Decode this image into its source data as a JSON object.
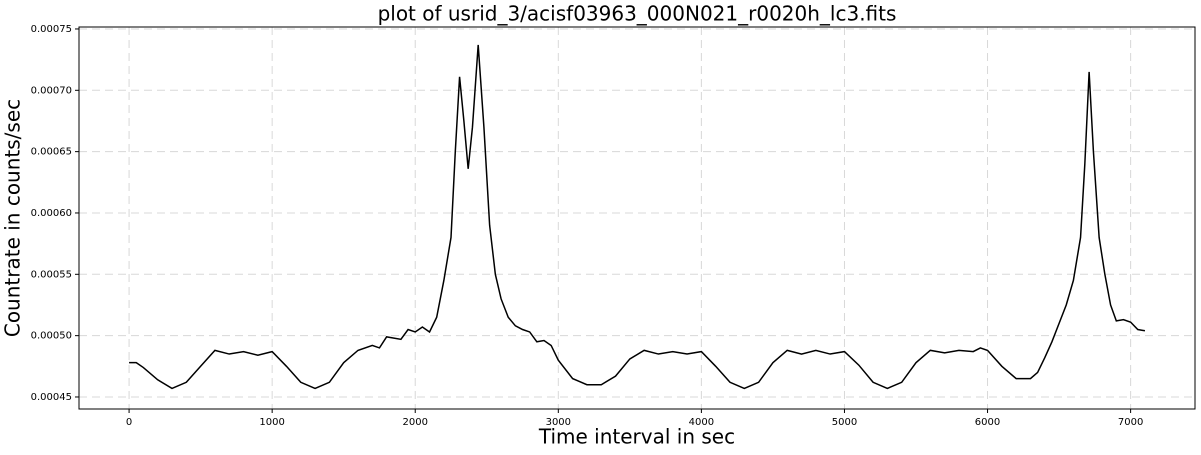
{
  "chart_data": {
    "type": "line",
    "title": "plot of usrid_3/acisf03963_000N021_r0020h_lc3.fits",
    "xlabel": "Time interval in sec",
    "ylabel": "Countrate in counts/sec",
    "x": [
      0,
      50,
      100,
      200,
      300,
      400,
      500,
      600,
      700,
      800,
      900,
      1000,
      1100,
      1200,
      1300,
      1400,
      1500,
      1600,
      1700,
      1750,
      1800,
      1900,
      1950,
      2000,
      2050,
      2100,
      2150,
      2200,
      2250,
      2280,
      2310,
      2340,
      2370,
      2400,
      2440,
      2480,
      2520,
      2560,
      2600,
      2650,
      2700,
      2750,
      2800,
      2850,
      2900,
      2950,
      3000,
      3100,
      3200,
      3300,
      3400,
      3500,
      3600,
      3700,
      3800,
      3900,
      4000,
      4100,
      4200,
      4300,
      4400,
      4500,
      4600,
      4700,
      4800,
      4900,
      5000,
      5100,
      5200,
      5300,
      5400,
      5500,
      5600,
      5700,
      5800,
      5900,
      5950,
      6000,
      6100,
      6200,
      6300,
      6350,
      6400,
      6450,
      6500,
      6550,
      6600,
      6650,
      6680,
      6710,
      6740,
      6780,
      6820,
      6860,
      6900,
      6950,
      7000,
      7050,
      7100
    ],
    "series": [
      {
        "name": "countrate",
        "color": "#000000",
        "values": [
          0.000478,
          0.000478,
          0.000474,
          0.000464,
          0.000457,
          0.000462,
          0.000475,
          0.000488,
          0.000485,
          0.000487,
          0.000484,
          0.000487,
          0.000475,
          0.000462,
          0.000457,
          0.000462,
          0.000478,
          0.000488,
          0.000492,
          0.00049,
          0.000499,
          0.000497,
          0.000505,
          0.000503,
          0.000507,
          0.000503,
          0.000515,
          0.000545,
          0.00058,
          0.00065,
          0.000711,
          0.000675,
          0.000636,
          0.00067,
          0.000737,
          0.00067,
          0.00059,
          0.00055,
          0.00053,
          0.000515,
          0.000508,
          0.000505,
          0.000503,
          0.000495,
          0.000496,
          0.000492,
          0.00048,
          0.000465,
          0.00046,
          0.00046,
          0.000467,
          0.000481,
          0.000488,
          0.000485,
          0.000487,
          0.000485,
          0.000487,
          0.000475,
          0.000462,
          0.000457,
          0.000462,
          0.000478,
          0.000488,
          0.000485,
          0.000488,
          0.000485,
          0.000487,
          0.000476,
          0.000462,
          0.000457,
          0.000462,
          0.000478,
          0.000488,
          0.000486,
          0.000488,
          0.000487,
          0.00049,
          0.000488,
          0.000475,
          0.000465,
          0.000465,
          0.00047,
          0.000482,
          0.000495,
          0.00051,
          0.000525,
          0.000545,
          0.00058,
          0.00064,
          0.000715,
          0.00065,
          0.00058,
          0.00055,
          0.000525,
          0.000512,
          0.000513,
          0.000511,
          0.000505,
          0.000504
        ]
      }
    ],
    "xlim": [
      -350,
      7450
    ],
    "xticks": [
      0,
      1000,
      2000,
      3000,
      4000,
      5000,
      6000,
      7000
    ],
    "ylim": [
      0.0004402,
      0.0007516
    ],
    "yticks": [
      0.00045,
      {
        "value": 0.0005,
        "label": "0.00050"
      },
      0.00055,
      {
        "value": 0.0006,
        "label": "0.00060"
      },
      0.00065,
      {
        "value": 0.0007,
        "label": "0.00070"
      },
      0.00075
    ],
    "grid": true
  }
}
